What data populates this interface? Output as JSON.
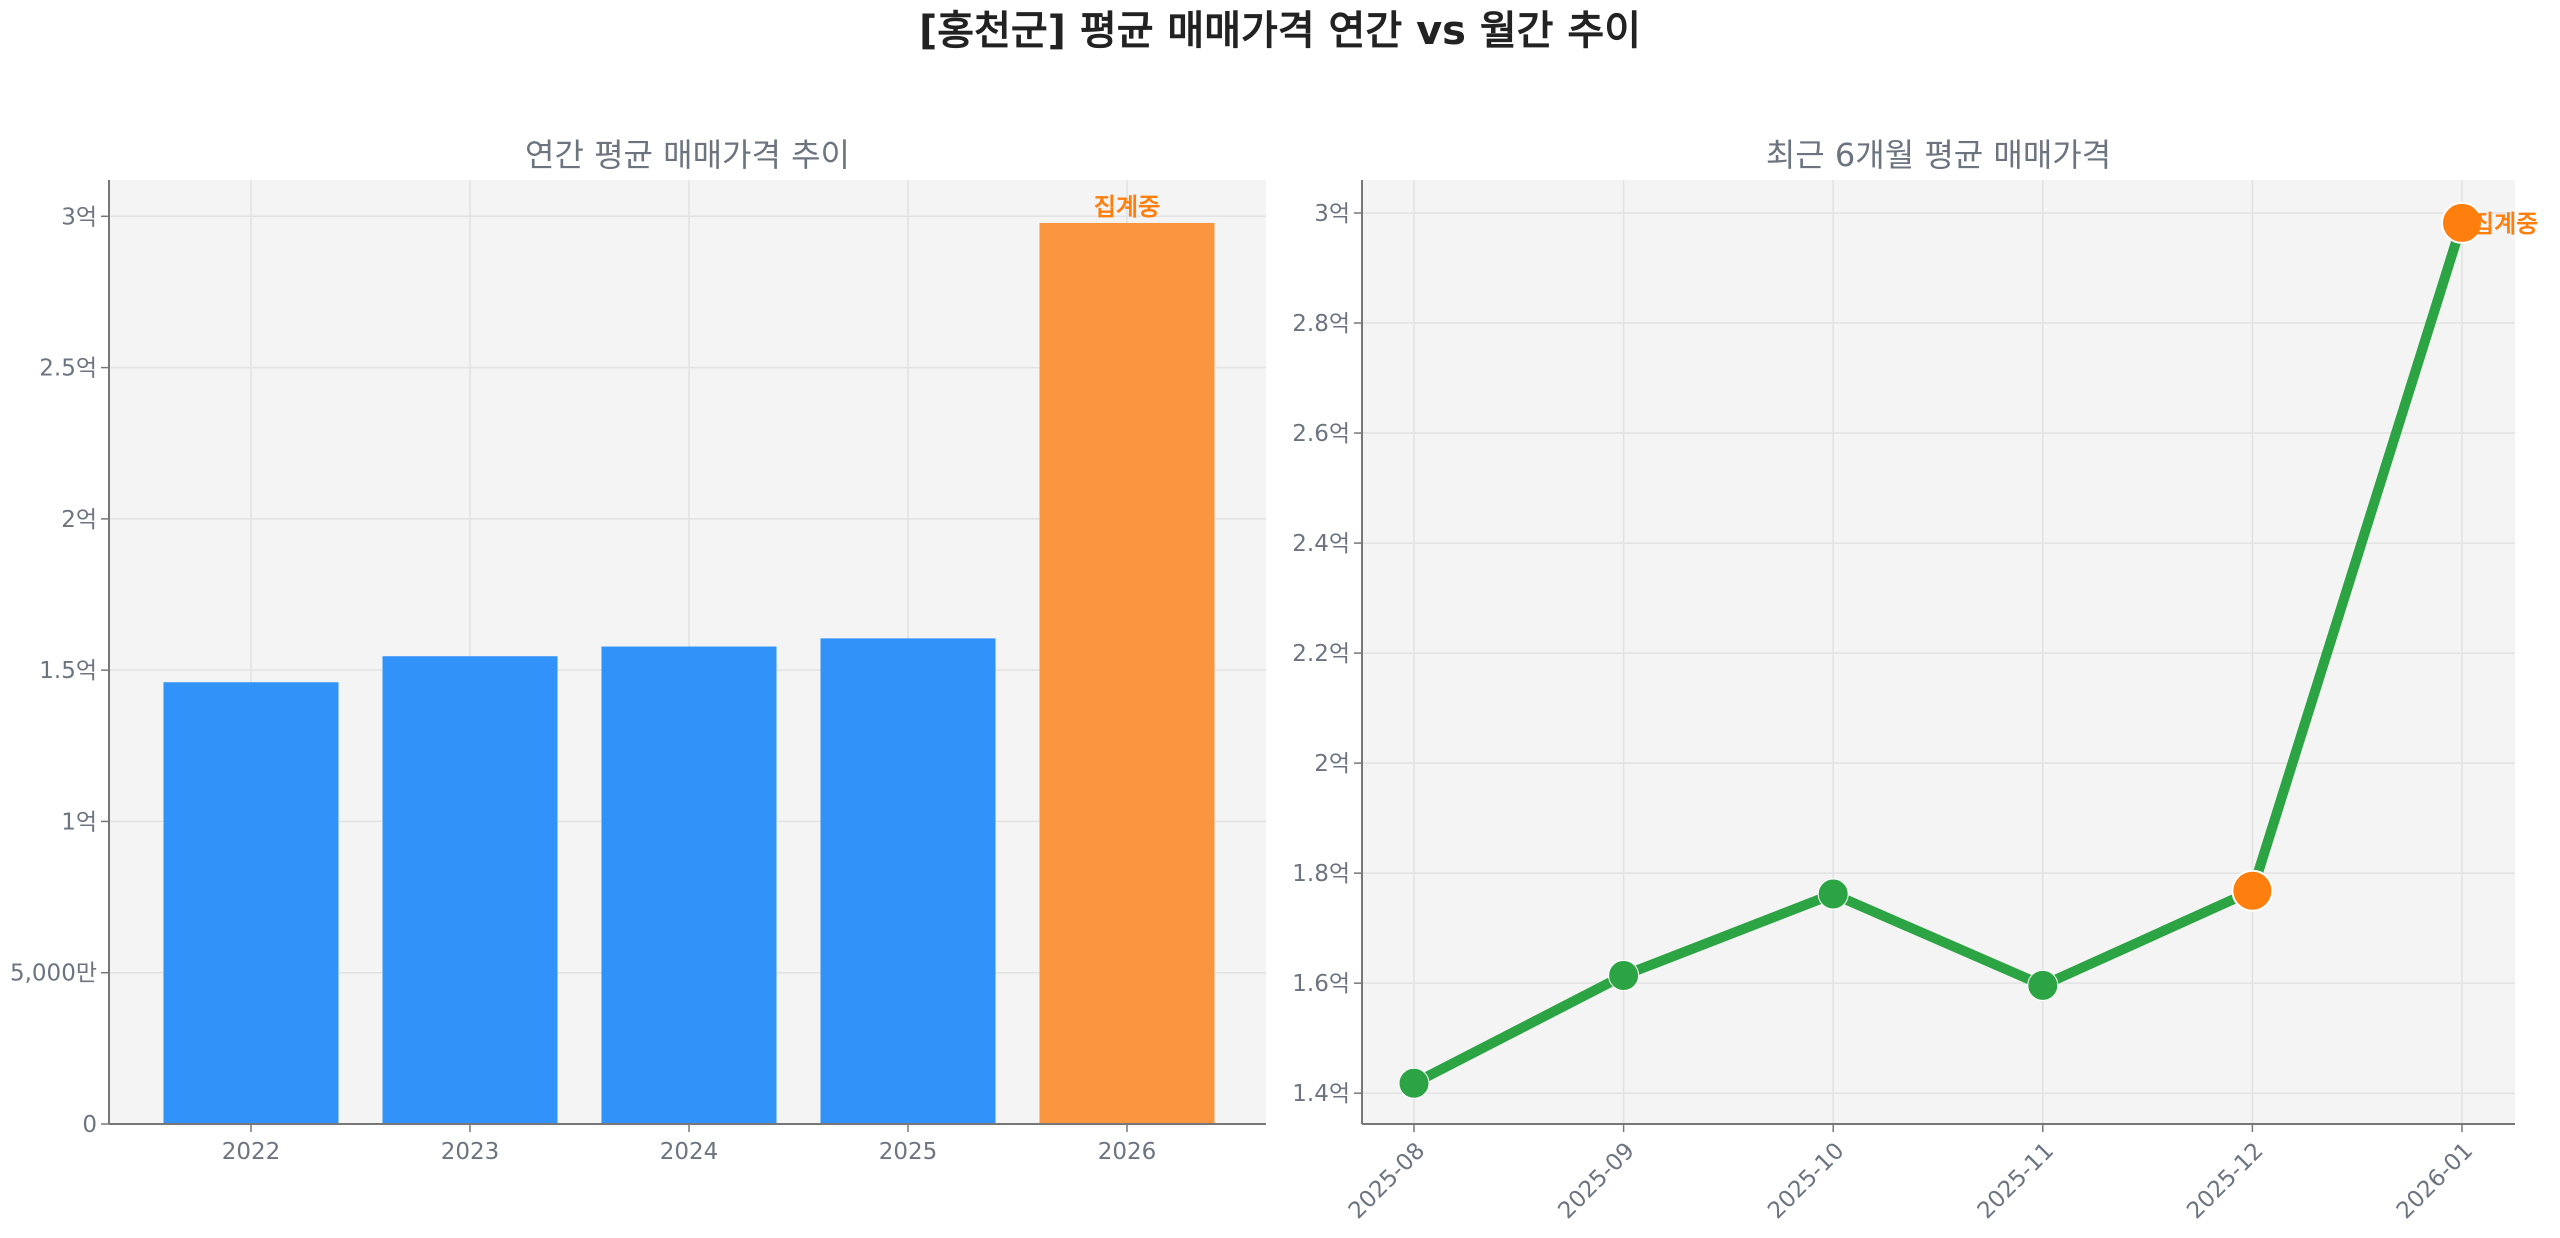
{
  "title": "[홍천군] 평균 매매가격 연간 vs 월간 추이",
  "colors": {
    "bar": "#3192fa",
    "bar_partial": "#f9963f",
    "line": "#2ca444",
    "marker_partial": "#ff7f0e",
    "annotation": "#ff7f0e",
    "axes_bg": "#f4f4f4",
    "text": "#6c7480"
  },
  "chart_data": [
    {
      "type": "bar",
      "title": "연간 평균 매매가격 추이",
      "categories": [
        "2022",
        "2023",
        "2024",
        "2025",
        "2026"
      ],
      "values": [
        146000000,
        154600000,
        157800000,
        160500000,
        297800000
      ],
      "partial": [
        false,
        false,
        false,
        false,
        true
      ],
      "annotation": {
        "category": "2026",
        "text": "집계중"
      },
      "ylim": [
        0,
        312000000
      ],
      "yticks": [
        0,
        50000000,
        100000000,
        150000000,
        200000000,
        250000000,
        300000000
      ],
      "ytick_labels": [
        "0",
        "5,000만",
        "1억",
        "1.5억",
        "2억",
        "2.5억",
        "3억"
      ],
      "grid": true
    },
    {
      "type": "line",
      "title": "최근 6개월 평균 매매가격",
      "categories": [
        "2025-08",
        "2025-09",
        "2025-10",
        "2025-11",
        "2025-12",
        "2026-01"
      ],
      "values": [
        141800000,
        161400000,
        176200000,
        159600000,
        176800000,
        298200000
      ],
      "partial": [
        false,
        false,
        false,
        false,
        true,
        true
      ],
      "annotation": {
        "category": "2026-01",
        "text": "집계중"
      },
      "ylim": [
        134400000,
        306000000
      ],
      "yticks": [
        140000000,
        160000000,
        180000000,
        200000000,
        220000000,
        240000000,
        260000000,
        280000000,
        300000000
      ],
      "ytick_labels": [
        "1.4억",
        "1.6억",
        "1.8억",
        "2억",
        "2.2억",
        "2.4억",
        "2.6억",
        "2.8억",
        "3억"
      ],
      "grid": true
    }
  ]
}
